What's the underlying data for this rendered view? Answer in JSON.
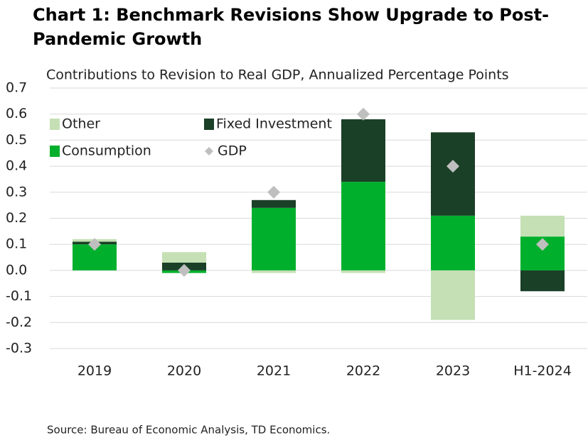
{
  "chart_data": {
    "type": "stacked-bar",
    "title": "Chart 1: Benchmark Revisions Show Upgrade to Post-Pandemic Growth",
    "subtitle": "Contributions to Revision to Real GDP, Annualized Percentage Points",
    "source": "Source: Bureau of Economic Analysis, TD Economics.",
    "categories": [
      "2019",
      "2020",
      "2021",
      "2022",
      "2023",
      "H1-2024"
    ],
    "series": [
      {
        "name": "Consumption",
        "color": "#00b02c",
        "values": [
          0.1,
          -0.01,
          0.24,
          0.34,
          0.21,
          0.13
        ]
      },
      {
        "name": "Fixed Investment",
        "color": "#1a4027",
        "values": [
          0.01,
          0.03,
          0.03,
          0.24,
          0.32,
          -0.08
        ]
      },
      {
        "name": "Other",
        "color": "#c5e0b4",
        "values": [
          0.01,
          0.04,
          -0.01,
          -0.01,
          -0.19,
          0.08
        ]
      }
    ],
    "line_series": {
      "name": "GDP",
      "color": "#bfbfbf",
      "marker": "diamond",
      "values": [
        0.1,
        0.0,
        0.3,
        0.6,
        0.4,
        0.1
      ]
    },
    "ylim": [
      -0.3,
      0.7
    ],
    "yticks": [
      -0.3,
      -0.2,
      -0.1,
      {
        "value": 0,
        "label": "0.0"
      },
      0.1,
      0.2,
      0.3,
      0.4,
      0.5,
      0.6,
      0.7
    ],
    "grid": true
  }
}
